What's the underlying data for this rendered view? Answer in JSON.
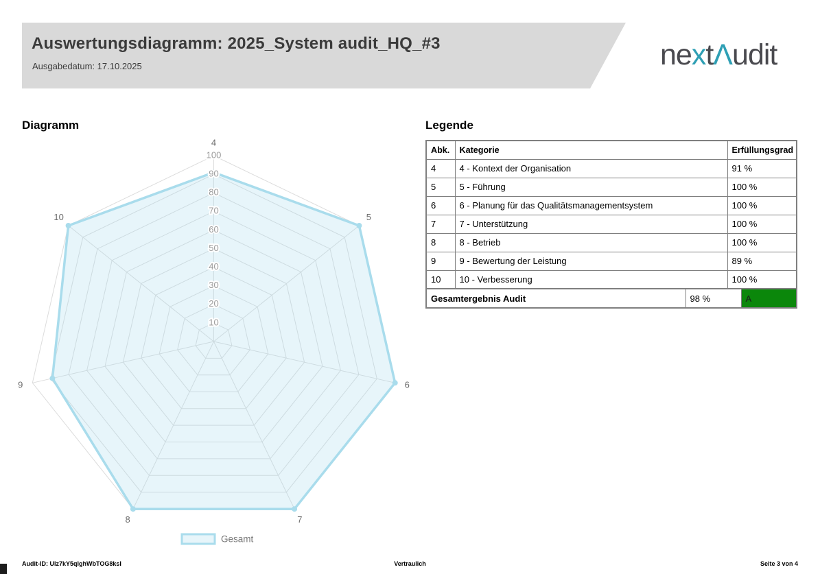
{
  "header": {
    "title": "Auswertungsdiagramm: 2025_System audit_HQ_#3",
    "date_line": "Ausgabedatum: 17.10.2025"
  },
  "logo": {
    "segments": [
      {
        "text": "ne",
        "color": "#4a4a4f"
      },
      {
        "text": "x",
        "color": "#2e9fb4"
      },
      {
        "text": "t",
        "color": "#4a4a4f"
      },
      {
        "text": "Λ",
        "color": "#2e9fb4"
      },
      {
        "text": "udit",
        "color": "#4a4a4f"
      }
    ]
  },
  "sections": {
    "diagram_title": "Diagramm",
    "legend_title": "Legende"
  },
  "legend_table": {
    "columns": [
      "Abk.",
      "Kategorie",
      "Erfüllungsgrad"
    ],
    "rows": [
      [
        "4",
        "4 - Kontext der Organisation",
        "91 %"
      ],
      [
        "5",
        "5 - Führung",
        "100 %"
      ],
      [
        "6",
        "6 - Planung für das Qualitätsmanagementsystem",
        "100 %"
      ],
      [
        "7",
        "7 - Unterstützung",
        "100 %"
      ],
      [
        "8",
        "8 - Betrieb",
        "100 %"
      ],
      [
        "9",
        "9 - Bewertung der Leistung",
        "89 %"
      ],
      [
        "10",
        "10 - Verbesserung",
        "100 %"
      ]
    ],
    "summary": {
      "label": "Gesamtergebnis Audit",
      "value": "98 %",
      "grade": "A",
      "grade_color": "#0b870b"
    }
  },
  "chart_data": {
    "type": "radar",
    "categories": [
      "4",
      "5",
      "6",
      "7",
      "8",
      "9",
      "10"
    ],
    "series": [
      {
        "name": "Gesamt",
        "values": [
          91,
          100,
          100,
          100,
          100,
          89,
          100
        ]
      }
    ],
    "rmin": 0,
    "rmax": 100,
    "rstep": 10,
    "tick_labels": [
      "10",
      "20",
      "30",
      "40",
      "50",
      "60",
      "70",
      "80",
      "90",
      "100"
    ],
    "legend_label": "Gesamt",
    "grid": "on",
    "legend_position": "bottom",
    "colors": {
      "stroke": "#a9dcec",
      "fill": "rgba(169,220,236,0.28)",
      "grid": "#dcdcdc",
      "tick": "#9b9b9b",
      "point_label": "#6b6b6b",
      "legend_text": "#767676"
    }
  },
  "footer": {
    "audit_id": "Audit-ID: Ulz7kY5qIghWbTOG8ksI",
    "center": "Vertraulich",
    "page": "Seite 3 von 4"
  }
}
